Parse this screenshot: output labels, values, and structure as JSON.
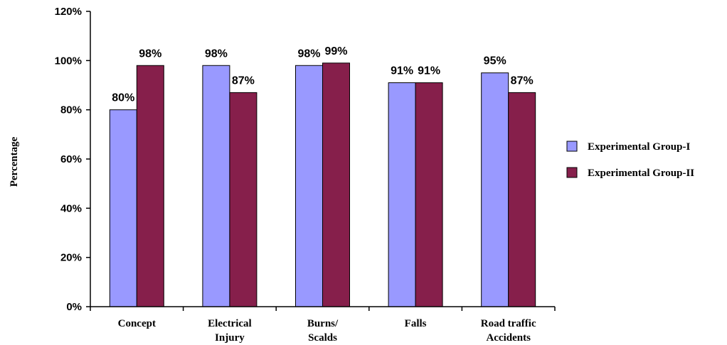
{
  "chart_data": {
    "type": "bar",
    "categories": [
      [
        "Concept"
      ],
      [
        "Electrical",
        "Injury"
      ],
      [
        "Burns/",
        "Scalds"
      ],
      [
        "Falls"
      ],
      [
        "Road traffic",
        "Accidents"
      ]
    ],
    "series": [
      {
        "name": "Experimental Group-I",
        "color": "#9999ff",
        "values": [
          80,
          98,
          98,
          91,
          95
        ],
        "labels": [
          "80%",
          "98%",
          "98%",
          "91%",
          "95%"
        ]
      },
      {
        "name": "Experimental Group-II",
        "color": "#861f4b",
        "values": [
          98,
          87,
          99,
          91,
          87
        ],
        "labels": [
          "98%",
          "87%",
          "99%",
          "91%",
          "87%"
        ]
      }
    ],
    "title": "",
    "xlabel": "",
    "ylabel": "Percentage",
    "ylim": [
      0,
      120
    ],
    "yticks": [
      0,
      20,
      40,
      60,
      80,
      100,
      120
    ],
    "ytick_labels": [
      "0%",
      "20%",
      "40%",
      "60%",
      "80%",
      "100%",
      "120%"
    ],
    "grid": false,
    "legend_position": "right"
  }
}
